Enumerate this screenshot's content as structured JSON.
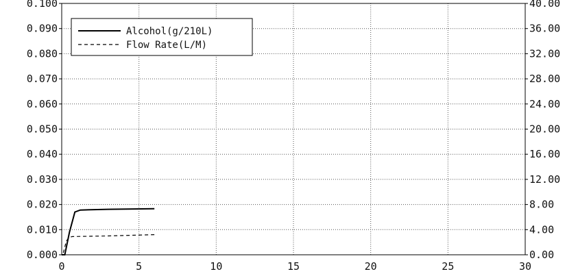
{
  "chart_data": {
    "type": "line",
    "title": "",
    "xlabel": "",
    "ylabel": "",
    "y2label": "",
    "xlim": [
      0,
      30
    ],
    "ylim": [
      0,
      0.1
    ],
    "y2lim": [
      0,
      40
    ],
    "grid": true,
    "legend_position": "top-left",
    "x_ticks": [
      "0",
      "5",
      "10",
      "15",
      "20",
      "25",
      "30"
    ],
    "y_ticks": [
      "0.000",
      "0.010",
      "0.020",
      "0.030",
      "0.040",
      "0.050",
      "0.060",
      "0.070",
      "0.080",
      "0.090",
      "0.100"
    ],
    "y2_ticks": [
      "0.00",
      "4.00",
      "8.00",
      "12.00",
      "16.00",
      "20.00",
      "24.00",
      "28.00",
      "32.00",
      "36.00",
      "40.00"
    ],
    "series": [
      {
        "name": "Alcohol(g/210L)",
        "axis": "left",
        "style": "solid",
        "color": "#000000",
        "points": [
          [
            0,
            0
          ],
          [
            0.2,
            0
          ],
          [
            0.5,
            0.009
          ],
          [
            0.85,
            0.017
          ],
          [
            1.2,
            0.0178
          ],
          [
            3,
            0.0181
          ],
          [
            6,
            0.0183
          ]
        ]
      },
      {
        "name": "Flow Rate(L/M)",
        "axis": "right",
        "style": "dashed",
        "color": "#000000",
        "points": [
          [
            0.1,
            0.3
          ],
          [
            0.3,
            2.2
          ],
          [
            0.5,
            2.8
          ],
          [
            0.7,
            2.9
          ],
          [
            3,
            3.0
          ],
          [
            6,
            3.2
          ]
        ]
      }
    ]
  }
}
